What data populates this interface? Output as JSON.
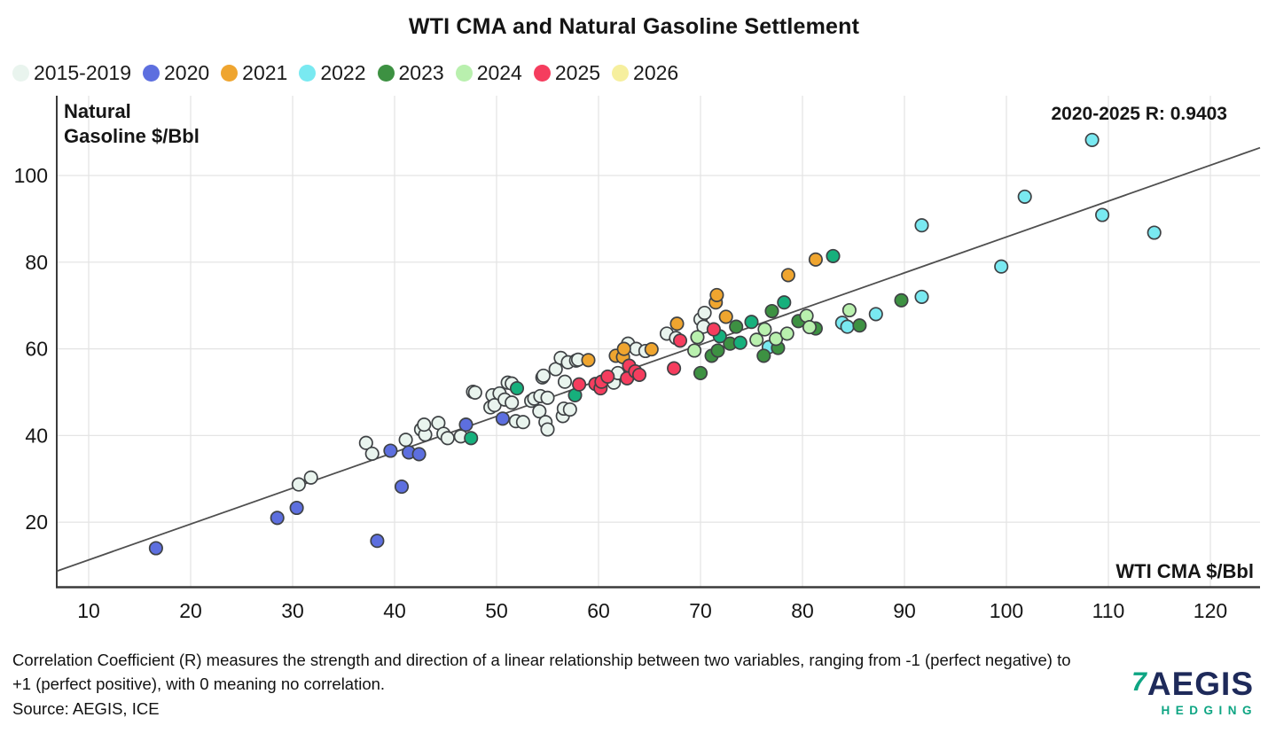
{
  "title": "WTI CMA and Natural Gasoline Settlement",
  "annotation": "2020-2025 R: 0.9403",
  "footnote": "Correlation Coefficient (R) measures the strength and direction of a linear relationship between two variables, ranging from -1 (perfect negative) to +1 (perfect positive), with 0 meaning no correlation.",
  "source": "Source: AEGIS, ICE",
  "logo": {
    "mark": "7",
    "brand": "AEGIS",
    "sub": "HEDGING",
    "navy": "#1e2a5a",
    "teal": "#0ea583"
  },
  "colors": {
    "grid": "#e4e4e4",
    "axis": "#3b3b3b",
    "trend": "#4f4f4f",
    "marker_stroke": "#3f4245",
    "text": "#161616"
  },
  "chart_data": {
    "type": "scatter",
    "title": "WTI CMA and Natural Gasoline Settlement",
    "xlabel": "WTI CMA $/Bbl",
    "ylabel_line1": "Natural",
    "ylabel_line2": "Gasoline $/Bbl",
    "xlim": [
      6.87,
      124.87
    ],
    "ylim": [
      5,
      118.4
    ],
    "x_ticks": [
      10,
      20,
      30,
      40,
      50,
      60,
      70,
      80,
      90,
      100,
      110,
      120
    ],
    "y_ticks": [
      20,
      40,
      60,
      80,
      100
    ],
    "grid": true,
    "legend_position": "top-left",
    "annotation": "2020-2025 R: 0.9403",
    "trend_line": {
      "x1": 6.87,
      "y1": 8.7,
      "x2": 124.87,
      "y2": 106.4
    },
    "series": [
      {
        "name": "2015-2019",
        "color": "#e9f4ee",
        "points": [
          [
            30.6,
            28.7
          ],
          [
            31.8,
            30.3
          ],
          [
            37.2,
            38.3
          ],
          [
            37.8,
            35.8
          ],
          [
            41.1,
            39.0
          ],
          [
            42.6,
            41.4
          ],
          [
            43.0,
            40.2
          ],
          [
            42.9,
            42.5
          ],
          [
            44.3,
            42.9
          ],
          [
            44.8,
            40.4
          ],
          [
            45.2,
            39.4
          ],
          [
            46.5,
            39.8
          ],
          [
            47.7,
            50.1
          ],
          [
            47.9,
            49.9
          ],
          [
            49.4,
            46.5
          ],
          [
            49.6,
            49.3
          ],
          [
            49.8,
            47.0
          ],
          [
            50.3,
            49.7
          ],
          [
            50.8,
            48.3
          ],
          [
            51.1,
            52.2
          ],
          [
            51.5,
            47.6
          ],
          [
            51.5,
            52.0
          ],
          [
            51.9,
            43.3
          ],
          [
            52.6,
            43.1
          ],
          [
            53.4,
            48.0
          ],
          [
            53.7,
            48.5
          ],
          [
            54.3,
            49.1
          ],
          [
            54.5,
            53.4
          ],
          [
            54.6,
            53.8
          ],
          [
            55.0,
            48.7
          ],
          [
            54.2,
            45.6
          ],
          [
            54.8,
            43.1
          ],
          [
            55.0,
            41.4
          ],
          [
            55.8,
            55.3
          ],
          [
            56.3,
            57.9
          ],
          [
            56.5,
            44.5
          ],
          [
            56.6,
            46.2
          ],
          [
            57.2,
            46.0
          ],
          [
            56.7,
            52.4
          ],
          [
            57.0,
            56.9
          ],
          [
            57.8,
            57.3
          ],
          [
            58.0,
            57.5
          ],
          [
            61.5,
            52.2
          ],
          [
            61.9,
            54.4
          ],
          [
            62.9,
            61.2
          ],
          [
            63.7,
            60.0
          ],
          [
            64.6,
            59.5
          ],
          [
            66.7,
            63.5
          ],
          [
            67.6,
            62.5
          ],
          [
            70.0,
            66.8
          ],
          [
            70.3,
            65.1
          ],
          [
            70.4,
            68.3
          ]
        ]
      },
      {
        "name": "2020",
        "color": "#5d6fdf",
        "points": [
          [
            16.6,
            14.0
          ],
          [
            28.5,
            21.0
          ],
          [
            30.4,
            23.3
          ],
          [
            38.3,
            15.7
          ],
          [
            39.6,
            36.5
          ],
          [
            40.7,
            28.2
          ],
          [
            41.4,
            36.1
          ],
          [
            42.4,
            35.7
          ],
          [
            47.0,
            42.5
          ],
          [
            50.6,
            43.9
          ]
        ]
      },
      {
        "name": "2021",
        "color": "#efa52f",
        "points": [
          [
            59.0,
            57.4
          ],
          [
            61.7,
            58.4
          ],
          [
            62.4,
            58.1
          ],
          [
            62.5,
            60.0
          ],
          [
            65.2,
            59.9
          ],
          [
            67.7,
            65.8
          ],
          [
            71.5,
            70.7
          ],
          [
            71.6,
            72.4
          ],
          [
            72.5,
            67.4
          ],
          [
            78.6,
            77.0
          ],
          [
            81.3,
            80.6
          ]
        ]
      },
      {
        "name": "2022",
        "color": "#79e9f1",
        "points": [
          [
            76.7,
            60.4
          ],
          [
            83.9,
            66.0
          ],
          [
            84.4,
            65.1
          ],
          [
            87.2,
            68.0
          ],
          [
            91.7,
            72.0
          ],
          [
            91.7,
            88.5
          ],
          [
            99.5,
            79.0
          ],
          [
            101.8,
            95.1
          ],
          [
            108.4,
            108.2
          ],
          [
            109.4,
            90.9
          ],
          [
            114.5,
            86.8
          ]
        ]
      },
      {
        "name": "2023",
        "color": "#3d9142",
        "points": [
          [
            70.0,
            54.4
          ],
          [
            71.1,
            58.4
          ],
          [
            71.7,
            59.6
          ],
          [
            72.9,
            61.2
          ],
          [
            73.5,
            65.1
          ],
          [
            76.2,
            58.4
          ],
          [
            77.0,
            68.7
          ],
          [
            77.6,
            60.2
          ],
          [
            79.6,
            66.4
          ],
          [
            81.3,
            64.7
          ],
          [
            85.6,
            65.4
          ],
          [
            89.7,
            71.2
          ],
          [
            47.5,
            39.4,
            "#16b07c"
          ],
          [
            52.0,
            50.9,
            "#16b07c"
          ],
          [
            57.7,
            49.3,
            "#16b07c"
          ],
          [
            71.9,
            62.9,
            "#16b07c"
          ],
          [
            73.9,
            61.4,
            "#16b07c"
          ],
          [
            75.0,
            66.2,
            "#16b07c"
          ],
          [
            78.2,
            70.7,
            "#16b07c"
          ],
          [
            83.0,
            81.4,
            "#16b07c"
          ]
        ]
      },
      {
        "name": "2024",
        "color": "#b9f0ae",
        "points": [
          [
            69.4,
            59.6
          ],
          [
            69.7,
            62.7
          ],
          [
            75.5,
            62.1
          ],
          [
            76.3,
            64.5
          ],
          [
            77.4,
            62.3
          ],
          [
            78.5,
            63.5
          ],
          [
            80.4,
            67.6
          ],
          [
            80.7,
            65.0
          ],
          [
            84.6,
            68.9
          ]
        ]
      },
      {
        "name": "2025",
        "color": "#f53d5e",
        "points": [
          [
            58.1,
            51.8
          ],
          [
            59.7,
            51.9
          ],
          [
            60.2,
            50.9
          ],
          [
            60.3,
            52.4
          ],
          [
            60.9,
            53.6
          ],
          [
            62.8,
            53.2
          ],
          [
            63.0,
            56.1
          ],
          [
            63.6,
            54.8
          ],
          [
            64.0,
            54.0
          ],
          [
            67.4,
            55.5
          ],
          [
            68.0,
            61.9
          ],
          [
            71.3,
            64.5
          ]
        ]
      },
      {
        "name": "2026",
        "color": "#f6ef9e",
        "points": []
      }
    ]
  }
}
